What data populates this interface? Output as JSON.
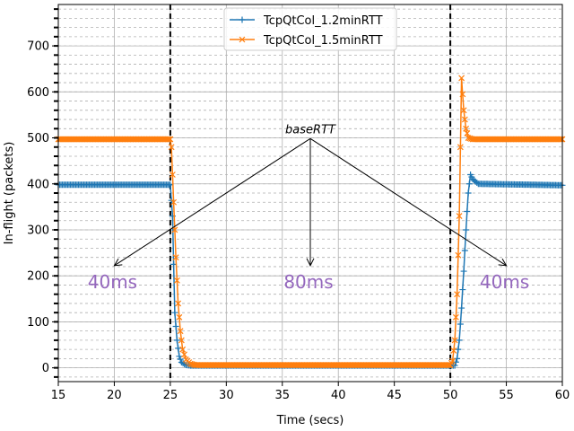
{
  "chart_data": {
    "type": "line",
    "title": "",
    "xlabel": "Time (secs)",
    "ylabel": "In-flight (packets)",
    "xlim": [
      15,
      60
    ],
    "ylim": [
      -30,
      790
    ],
    "x_ticks": [
      15,
      20,
      25,
      30,
      35,
      40,
      45,
      50,
      55,
      60
    ],
    "y_ticks": [
      0,
      100,
      200,
      300,
      400,
      500,
      600,
      700
    ],
    "y_minor_step": 20,
    "grid": "major solid, y-minor dashed",
    "legend_position": "top-center",
    "vertical_lines": [
      25,
      50
    ],
    "series": [
      {
        "name": "TcpQtCol_1.2minRTT",
        "color": "#1f77b4",
        "marker": "+",
        "points": [
          [
            15,
            398
          ],
          [
            25,
            398
          ],
          [
            25.2,
            330
          ],
          [
            25.4,
            120
          ],
          [
            25.6,
            60
          ],
          [
            25.8,
            25
          ],
          [
            26.0,
            12
          ],
          [
            26.4,
            6
          ],
          [
            26.8,
            5
          ],
          [
            50,
            5
          ],
          [
            50.4,
            5
          ],
          [
            50.6,
            20
          ],
          [
            50.8,
            60
          ],
          [
            51.0,
            130
          ],
          [
            51.2,
            210
          ],
          [
            51.4,
            300
          ],
          [
            51.6,
            380
          ],
          [
            51.8,
            420
          ],
          [
            52.0,
            410
          ],
          [
            52.5,
            400
          ],
          [
            60,
            397
          ]
        ]
      },
      {
        "name": "TcpQtCol_1.5minRTT",
        "color": "#ff7f0e",
        "marker": "x",
        "points": [
          [
            15,
            497
          ],
          [
            25,
            497
          ],
          [
            25.1,
            480
          ],
          [
            25.3,
            360
          ],
          [
            25.5,
            240
          ],
          [
            25.7,
            140
          ],
          [
            25.9,
            80
          ],
          [
            26.1,
            40
          ],
          [
            26.4,
            18
          ],
          [
            26.8,
            9
          ],
          [
            27.2,
            6
          ],
          [
            50,
            6
          ],
          [
            50.2,
            15
          ],
          [
            50.4,
            60
          ],
          [
            50.6,
            160
          ],
          [
            50.8,
            330
          ],
          [
            51.0,
            630
          ],
          [
            51.2,
            560
          ],
          [
            51.4,
            520
          ],
          [
            51.6,
            500
          ],
          [
            52.0,
            497
          ],
          [
            60,
            497
          ]
        ]
      }
    ],
    "annotation": {
      "label": "baseRTT",
      "label_xy": [
        37.5,
        518
      ],
      "targets": [
        {
          "text": "40ms",
          "x": 20,
          "y": 230
        },
        {
          "text": "80ms",
          "x": 37.5,
          "y": 230
        },
        {
          "text": "40ms",
          "x": 55,
          "y": 230
        }
      ],
      "target_color": "#9467bd"
    }
  }
}
